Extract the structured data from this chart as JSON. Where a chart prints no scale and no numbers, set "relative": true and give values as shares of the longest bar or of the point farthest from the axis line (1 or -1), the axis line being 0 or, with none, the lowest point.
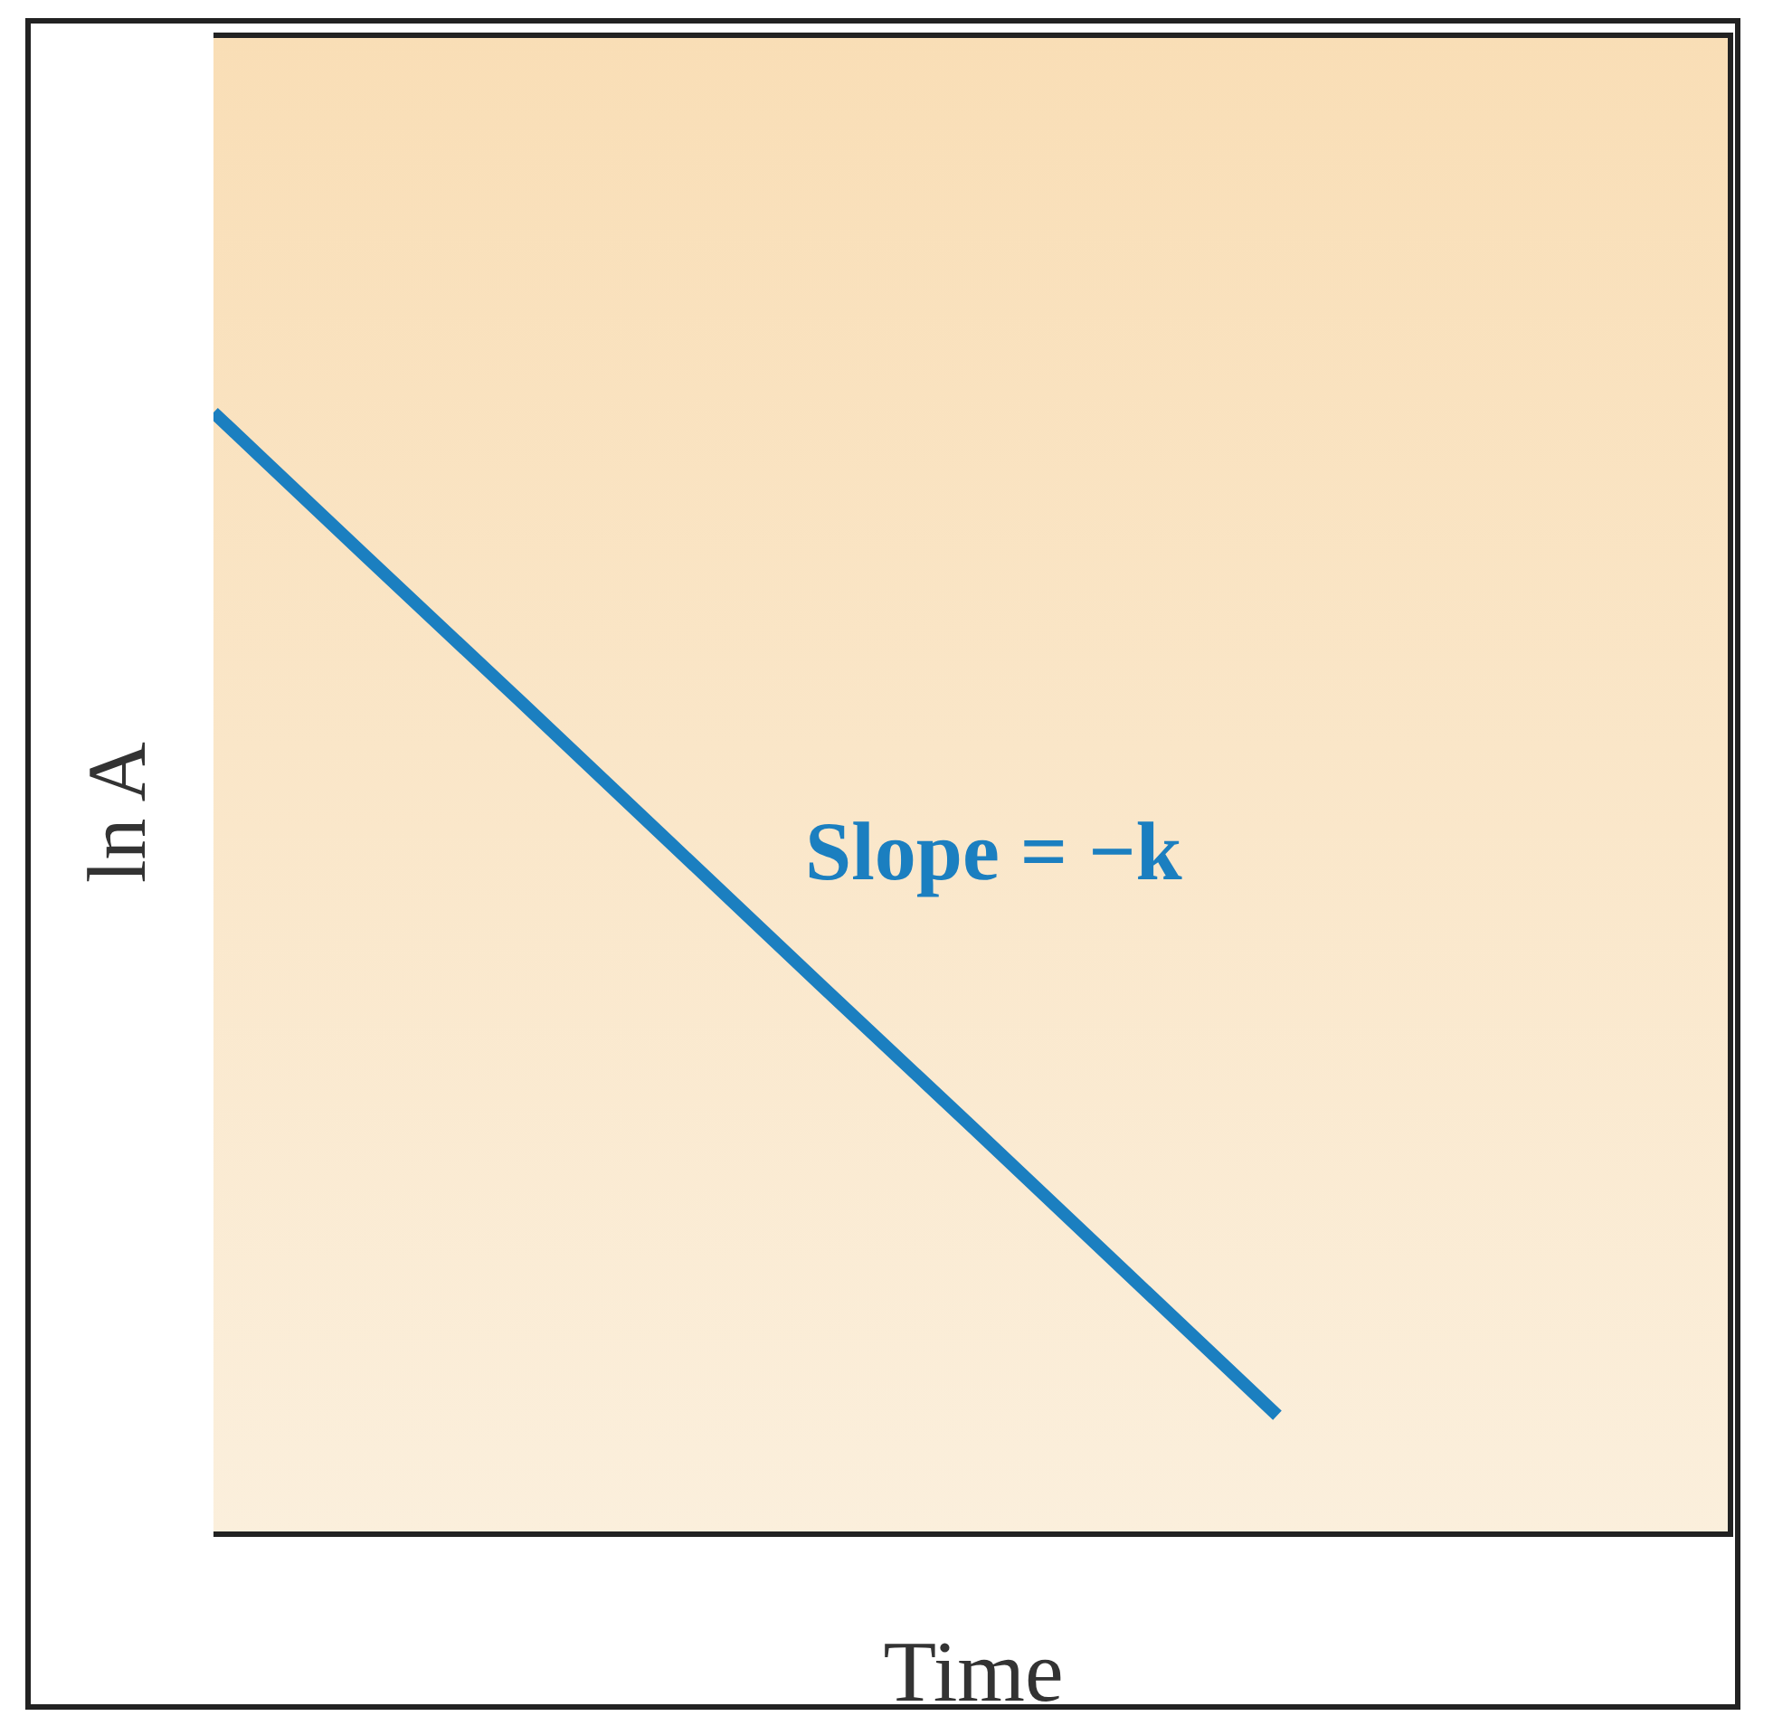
{
  "chart_data": {
    "type": "line",
    "xlabel": "Time",
    "ylabel": "ln A",
    "relative": true,
    "categories": [
      null,
      null,
      null,
      null,
      null,
      null,
      null,
      null,
      null,
      null,
      null
    ],
    "series": [
      {
        "color": "#1b7fc0",
        "values": [
          1,
          0.872,
          0.745,
          0.617,
          0.489,
          0.362,
          0.234,
          0.106,
          null,
          null,
          null
        ]
      }
    ],
    "annotations": [
      "Slope = −k"
    ]
  }
}
